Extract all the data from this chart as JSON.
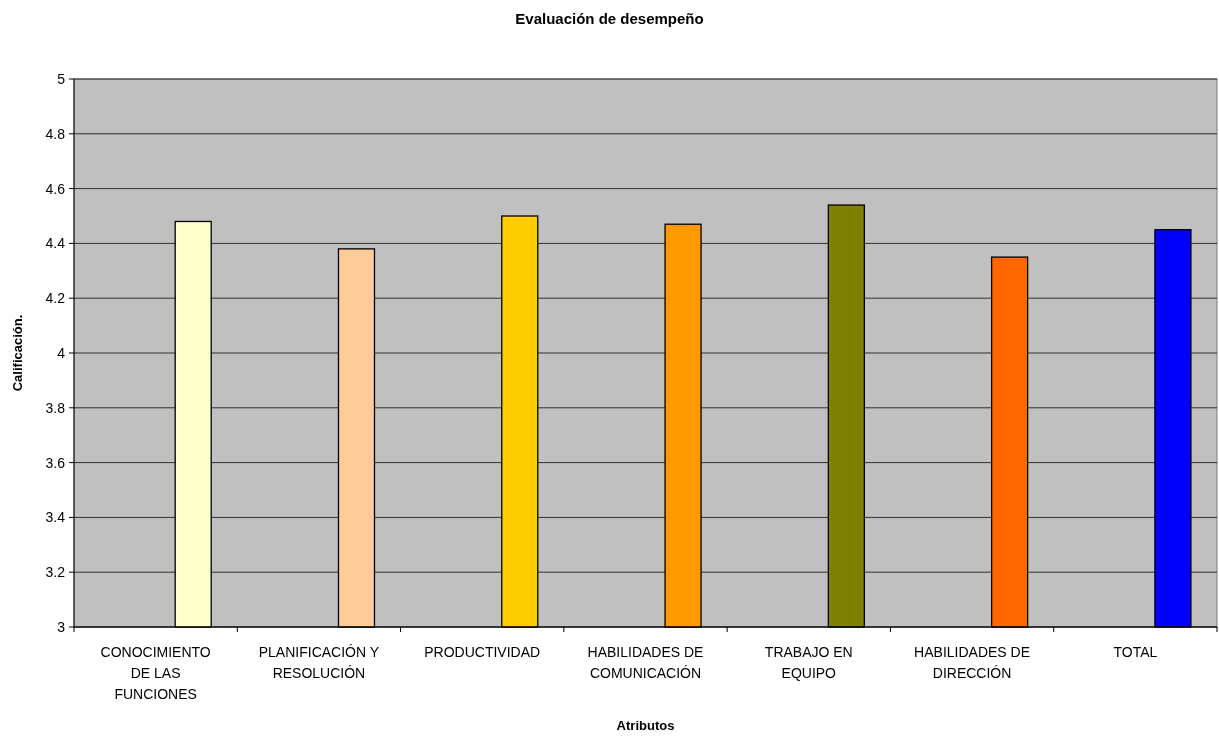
{
  "chart_data": {
    "type": "bar",
    "title": "Evaluación de desempeño",
    "xlabel": "Atributos",
    "ylabel": "Calificación.",
    "categories": [
      "CONOCIMIENTO DE LAS FUNCIONES",
      "PLANIFICACIÓN Y RESOLUCIÓN",
      "PRODUCTIVIDAD",
      "HABILIDADES DE COMUNICACIÓN",
      "TRABAJO EN EQUIPO",
      "HABILIDADES DE DIRECCIÓN",
      "TOTAL"
    ],
    "values": [
      4.48,
      4.38,
      4.5,
      4.47,
      4.54,
      4.35,
      4.45
    ],
    "colors": [
      "#ffffcc",
      "#ffcc99",
      "#ffcc00",
      "#ff9900",
      "#808000",
      "#ff6600",
      "#0000ff"
    ],
    "ylim": [
      3,
      5
    ],
    "yticks": [
      3,
      3.2,
      3.4,
      3.6,
      3.8,
      4,
      4.2,
      4.4,
      4.6,
      4.8,
      5
    ],
    "grid": "y"
  }
}
